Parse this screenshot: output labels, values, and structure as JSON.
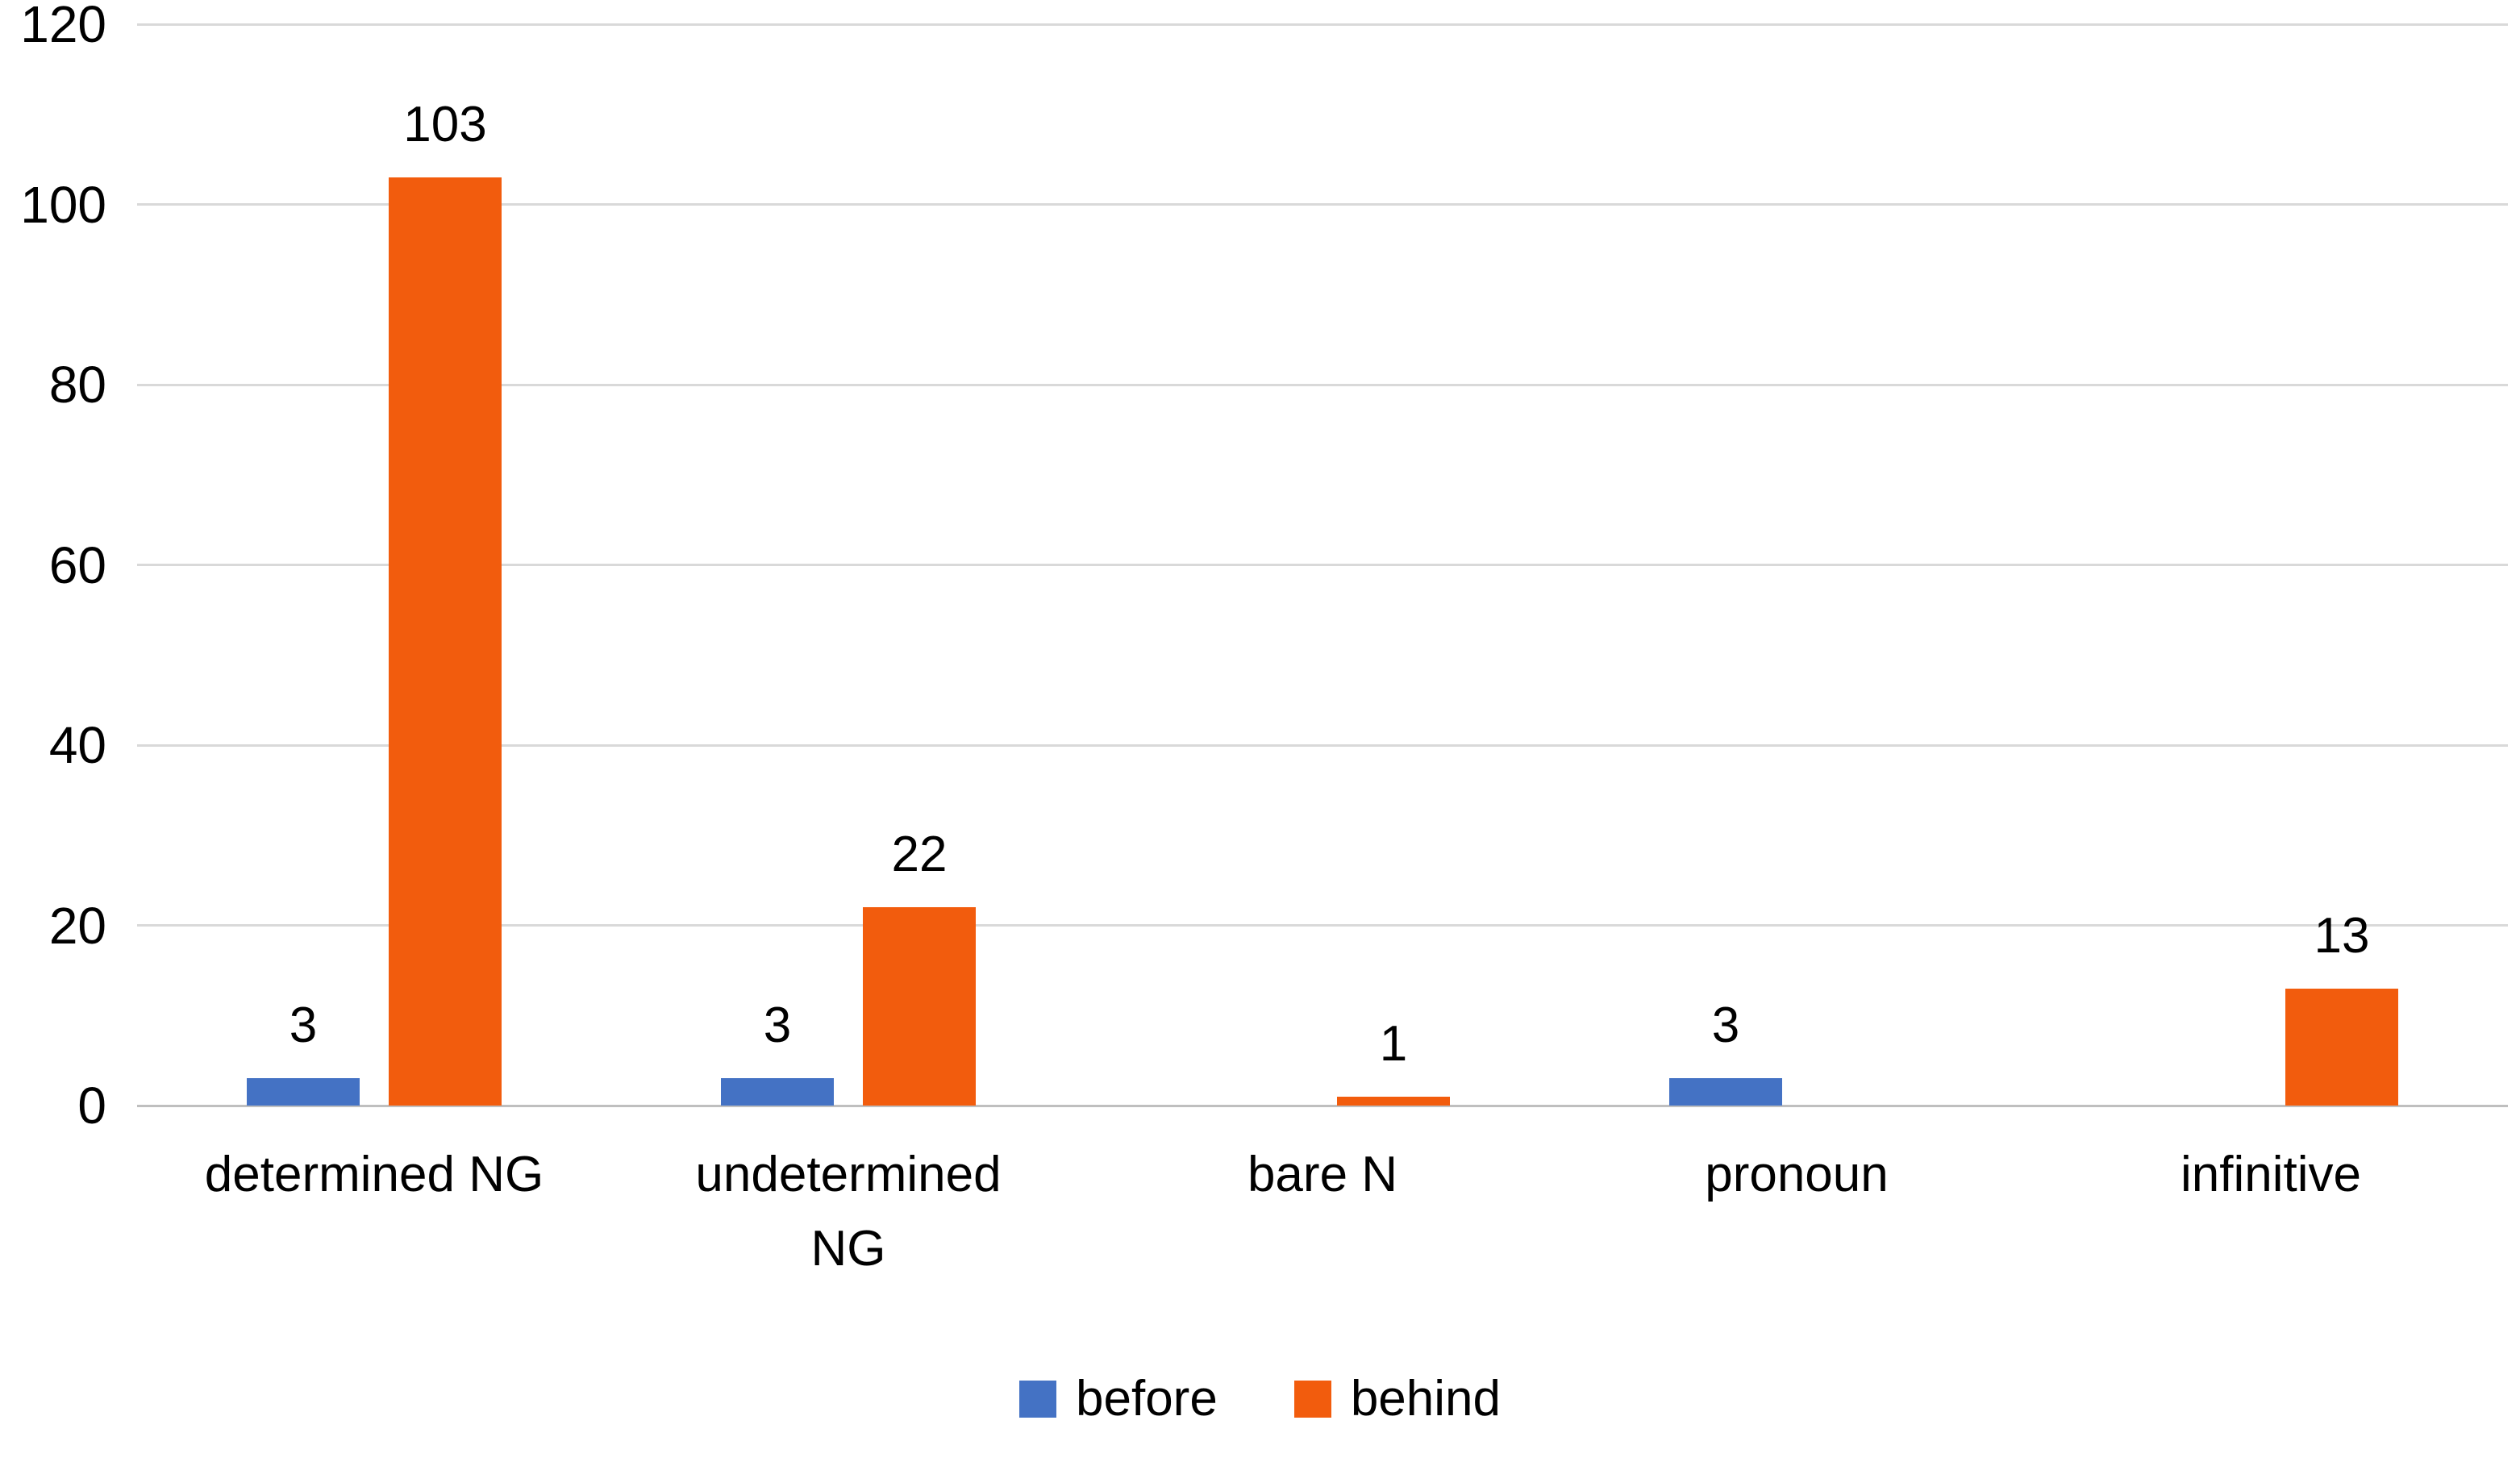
{
  "chart_data": {
    "type": "bar",
    "categories": [
      "determined NG",
      "undetermined NG",
      "bare N",
      "pronoun",
      "infinitive"
    ],
    "series": [
      {
        "name": "before",
        "color": "#4472C4",
        "values": [
          3,
          3,
          0,
          3,
          0
        ]
      },
      {
        "name": "behind",
        "color": "#F25C0D",
        "values": [
          103,
          22,
          1,
          0,
          13
        ]
      }
    ],
    "ylim": [
      0,
      120
    ],
    "ytick_step": 20,
    "yticks": [
      0,
      20,
      40,
      60,
      80,
      100,
      120
    ],
    "grid": true,
    "data_labels": true,
    "legend_position": "bottom",
    "colors": {
      "gridline": "#D9D9D9",
      "axis_line": "#BFBFBF",
      "text": "#000000",
      "background": "#FFFFFF"
    }
  }
}
